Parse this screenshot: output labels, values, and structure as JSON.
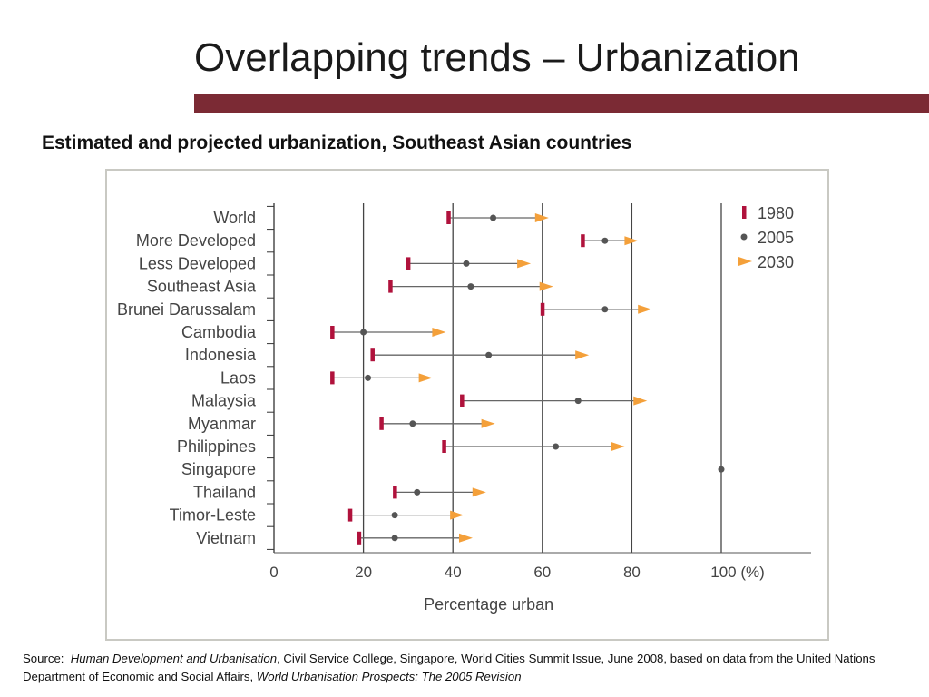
{
  "slide": {
    "title": "Overlapping trends – Urbanization",
    "subtitle": "Estimated and projected urbanization, Southeast Asian countries",
    "accent_color": "#7b2a34"
  },
  "source": {
    "prefix": "Source:",
    "book": "Human Development and Urbanisation",
    "middle": ", Civil Service College, Singapore, World Cities Summit Issue, June 2008, based on data from the United Nations Department of Economic and Social Affairs,",
    "report": "World Urbanisation Prospects: The 2005 Revision"
  },
  "chart_data": {
    "type": "dot-plot",
    "xlabel": "Percentage urban",
    "xlim": [
      0,
      120
    ],
    "xticks": [
      0,
      20,
      40,
      60,
      80,
      100
    ],
    "xtick_labels": [
      "0",
      "20",
      "40",
      "60",
      "80",
      "100 (%)"
    ],
    "grid": "vertical",
    "legend_position": "top-right",
    "series": [
      {
        "name": "1980",
        "color": "#b0123c",
        "marker": "bar"
      },
      {
        "name": "2005",
        "color": "#555555",
        "marker": "dot"
      },
      {
        "name": "2030",
        "color": "#f4a03a",
        "marker": "arrow"
      }
    ],
    "categories": [
      "World",
      "More Developed",
      "Less Developed",
      "Southeast Asia",
      "Brunei Darussalam",
      "Cambodia",
      "Indonesia",
      "Laos",
      "Malaysia",
      "Myanmar",
      "Philippines",
      "Singapore",
      "Thailand",
      "Timor-Leste",
      "Vietnam"
    ],
    "values": {
      "1980": [
        39,
        69,
        30,
        26,
        60,
        13,
        22,
        13,
        42,
        24,
        38,
        100,
        27,
        17,
        19
      ],
      "2005": [
        49,
        74,
        43,
        44,
        74,
        20,
        48,
        21,
        68,
        31,
        63,
        100,
        32,
        27,
        27
      ],
      "2030": [
        60,
        80,
        56,
        61,
        83,
        37,
        69,
        34,
        82,
        48,
        77,
        100,
        46,
        41,
        43
      ]
    }
  }
}
